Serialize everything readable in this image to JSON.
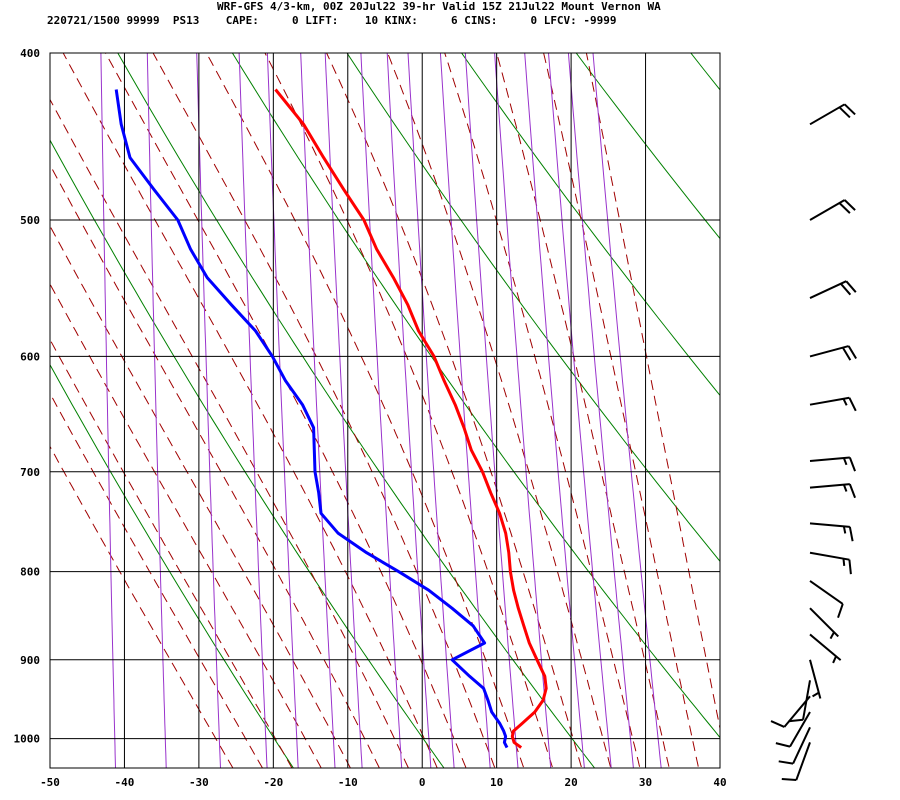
{
  "header": {
    "line1": "WRF-GFS 4/3-km, 00Z 20Jul22 39-hr Valid 15Z 21Jul22 Mount Vernon WA",
    "line2": "220721/1500 99999  PS13    CAPE:     0 LIFT:    10 KINX:     6 CINS:     0 LFCV: -9999"
  },
  "chart_data": {
    "type": "line",
    "subtype": "skew-t log-p sounding",
    "title": "WRF-GFS 4/3-km, 00Z 20Jul22 39-hr Valid 15Z 21Jul22 Mount Vernon WA",
    "xlabel": "",
    "ylabel": "",
    "x_ticks": [
      -50,
      -40,
      -30,
      -20,
      -10,
      0,
      10,
      20,
      30,
      40
    ],
    "y_ticks": [
      400,
      500,
      600,
      700,
      800,
      900,
      1000
    ],
    "y_scale": "log",
    "xlim": [
      -50,
      40
    ],
    "ylim": [
      1040,
      400
    ],
    "grid": true,
    "colors": {
      "temperature": "#ff0000",
      "dewpoint": "#0000ff",
      "dry_adiabat": "#008000",
      "moist_adiabat": "#a00000",
      "mixing_ratio": "#9933cc",
      "grid": "#000000"
    },
    "series": [
      {
        "color": "#ff0000",
        "points": [
          [
            1012,
            13.1
          ],
          [
            1005,
            12.1
          ],
          [
            997,
            11.8
          ],
          [
            990,
            11.9
          ],
          [
            980,
            13.0
          ],
          [
            965,
            14.6
          ],
          [
            950,
            15.6
          ],
          [
            935,
            15.9
          ],
          [
            920,
            15.6
          ],
          [
            900,
            14.4
          ],
          [
            880,
            13.2
          ],
          [
            860,
            12.3
          ],
          [
            840,
            11.4
          ],
          [
            820,
            10.6
          ],
          [
            800,
            10.0
          ],
          [
            780,
            9.6
          ],
          [
            760,
            9.0
          ],
          [
            740,
            8.0
          ],
          [
            720,
            6.6
          ],
          [
            700,
            5.3
          ],
          [
            680,
            3.6
          ],
          [
            660,
            2.4
          ],
          [
            640,
            1.0
          ],
          [
            620,
            -0.7
          ],
          [
            600,
            -2.3
          ],
          [
            580,
            -4.6
          ],
          [
            560,
            -6.3
          ],
          [
            540,
            -8.5
          ],
          [
            520,
            -11.0
          ],
          [
            500,
            -13.0
          ],
          [
            480,
            -16.0
          ],
          [
            460,
            -19.0
          ],
          [
            440,
            -22.0
          ],
          [
            420,
            -26.1
          ]
        ]
      },
      {
        "color": "#0000ff",
        "points": [
          [
            1012,
            11.2
          ],
          [
            1005,
            10.8
          ],
          [
            997,
            10.9
          ],
          [
            990,
            10.6
          ],
          [
            980,
            10.0
          ],
          [
            965,
            8.8
          ],
          [
            950,
            8.2
          ],
          [
            935,
            7.5
          ],
          [
            920,
            5.5
          ],
          [
            900,
            3.0
          ],
          [
            880,
            7.2
          ],
          [
            860,
            5.5
          ],
          [
            840,
            2.5
          ],
          [
            820,
            -0.8
          ],
          [
            800,
            -5.0
          ],
          [
            780,
            -9.5
          ],
          [
            760,
            -13.5
          ],
          [
            740,
            -16.0
          ],
          [
            720,
            -16.5
          ],
          [
            700,
            -17.2
          ],
          [
            680,
            -17.5
          ],
          [
            660,
            -17.8
          ],
          [
            640,
            -19.5
          ],
          [
            620,
            -22.0
          ],
          [
            600,
            -24.0
          ],
          [
            580,
            -26.5
          ],
          [
            560,
            -30.0
          ],
          [
            540,
            -33.5
          ],
          [
            520,
            -36.0
          ],
          [
            500,
            -38.0
          ],
          [
            480,
            -41.5
          ],
          [
            460,
            -45.0
          ],
          [
            440,
            -46.5
          ],
          [
            420,
            -47.5
          ]
        ]
      }
    ],
    "wind_barbs": [
      {
        "p": 1005,
        "dir": 200,
        "spd": 10
      },
      {
        "p": 985,
        "dir": 205,
        "spd": 10
      },
      {
        "p": 965,
        "dir": 210,
        "spd": 10
      },
      {
        "p": 945,
        "dir": 220,
        "spd": 10
      },
      {
        "p": 925,
        "dir": 190,
        "spd": 10
      },
      {
        "p": 900,
        "dir": 165,
        "spd": 5
      },
      {
        "p": 870,
        "dir": 130,
        "spd": 5
      },
      {
        "p": 840,
        "dir": 135,
        "spd": 5
      },
      {
        "p": 810,
        "dir": 125,
        "spd": 10
      },
      {
        "p": 780,
        "dir": 100,
        "spd": 15
      },
      {
        "p": 750,
        "dir": 95,
        "spd": 15
      },
      {
        "p": 715,
        "dir": 85,
        "spd": 15
      },
      {
        "p": 690,
        "dir": 85,
        "spd": 15
      },
      {
        "p": 640,
        "dir": 80,
        "spd": 15
      },
      {
        "p": 600,
        "dir": 75,
        "spd": 20
      },
      {
        "p": 555,
        "dir": 65,
        "spd": 20
      },
      {
        "p": 500,
        "dir": 60,
        "spd": 20
      },
      {
        "p": 440,
        "dir": 60,
        "spd": 20
      }
    ]
  }
}
